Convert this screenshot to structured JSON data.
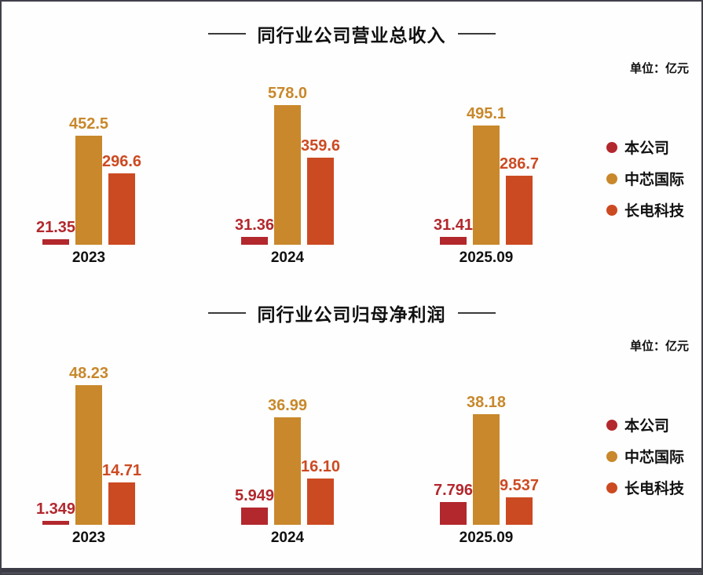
{
  "page": {
    "background": "#fefefe",
    "frame_color": "#40404a"
  },
  "chart_data": [
    {
      "type": "bar",
      "title": "同行业公司营业总收入",
      "unit_label": "单位：亿元",
      "categories": [
        "2023",
        "2024",
        "2025.09"
      ],
      "series": [
        {
          "name": "本公司",
          "color": "#b2282d",
          "values": [
            21.35,
            31.36,
            31.41
          ]
        },
        {
          "name": "中芯国际",
          "color": "#c8882b",
          "values": [
            452.5,
            578.0,
            495.1
          ]
        },
        {
          "name": "长电科技",
          "color": "#cc4a22",
          "values": [
            296.6,
            359.6,
            286.7
          ]
        }
      ],
      "value_labels": [
        [
          "21.35",
          "452.5",
          "296.6"
        ],
        [
          "31.36",
          "578.0",
          "359.6"
        ],
        [
          "31.41",
          "495.1",
          "286.7"
        ]
      ],
      "legend_position": "right",
      "grid": false,
      "xlabel": "",
      "ylabel": "",
      "ylim": [
        0,
        578
      ]
    },
    {
      "type": "bar",
      "title": "同行业公司归母净利润",
      "unit_label": "单位：亿元",
      "categories": [
        "2023",
        "2024",
        "2025.09"
      ],
      "series": [
        {
          "name": "本公司",
          "color": "#b2282d",
          "values": [
            1.349,
            5.949,
            7.796
          ]
        },
        {
          "name": "中芯国际",
          "color": "#c8882b",
          "values": [
            48.23,
            36.99,
            38.18
          ]
        },
        {
          "name": "长电科技",
          "color": "#cc4a22",
          "values": [
            14.71,
            16.1,
            9.537
          ]
        }
      ],
      "value_labels": [
        [
          "1.349",
          "48.23",
          "14.71"
        ],
        [
          "5.949",
          "36.99",
          "16.10"
        ],
        [
          "7.796",
          "38.18",
          "9.537"
        ]
      ],
      "legend_position": "right",
      "grid": false,
      "xlabel": "",
      "ylabel": "",
      "ylim": [
        0,
        48.23
      ]
    }
  ]
}
